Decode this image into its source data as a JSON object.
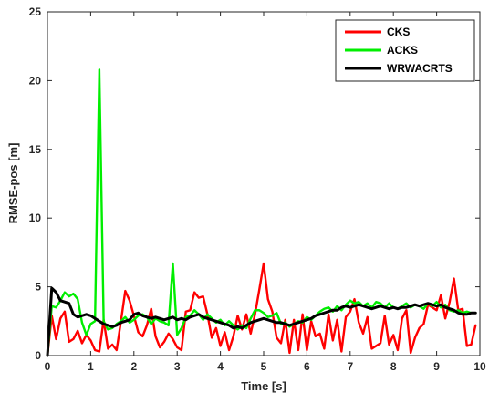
{
  "chart_data": {
    "type": "line",
    "title": "",
    "xlabel": "Time [s]",
    "ylabel": "RMSE-pos [m]",
    "xlim": [
      0,
      10
    ],
    "ylim": [
      0,
      25
    ],
    "xticks": [
      "0",
      "1",
      "2",
      "3",
      "4",
      "5",
      "6",
      "7",
      "8",
      "9",
      "10"
    ],
    "yticks": [
      "0",
      "5",
      "10",
      "15",
      "20",
      "25"
    ],
    "grid": false,
    "legend_position": "top-right",
    "series": [
      {
        "name": "CKS",
        "color": "#ff0000",
        "x": [
          0,
          0.1,
          0.2,
          0.3,
          0.4,
          0.5,
          0.6,
          0.7,
          0.8,
          0.9,
          1.0,
          1.1,
          1.2,
          1.3,
          1.4,
          1.5,
          1.6,
          1.7,
          1.8,
          1.9,
          2.0,
          2.1,
          2.2,
          2.3,
          2.4,
          2.5,
          2.6,
          2.7,
          2.8,
          2.9,
          3.0,
          3.1,
          3.2,
          3.3,
          3.4,
          3.5,
          3.6,
          3.7,
          3.8,
          3.9,
          4.0,
          4.1,
          4.2,
          4.3,
          4.4,
          4.5,
          4.6,
          4.7,
          4.8,
          4.9,
          5.0,
          5.1,
          5.2,
          5.3,
          5.4,
          5.5,
          5.6,
          5.7,
          5.8,
          5.9,
          6.0,
          6.1,
          6.2,
          6.3,
          6.4,
          6.5,
          6.6,
          6.7,
          6.8,
          6.9,
          7.0,
          7.1,
          7.2,
          7.3,
          7.4,
          7.5,
          7.6,
          7.7,
          7.8,
          7.9,
          8.0,
          8.1,
          8.2,
          8.3,
          8.4,
          8.5,
          8.6,
          8.7,
          8.8,
          8.9,
          9.0,
          9.1,
          9.2,
          9.3,
          9.4,
          9.5,
          9.6,
          9.7,
          9.8,
          9.9
        ],
        "values": [
          0,
          2.9,
          1.2,
          2.7,
          3.2,
          1.0,
          1.2,
          1.8,
          0.9,
          1.5,
          1.1,
          0.4,
          0.3,
          2.6,
          0.5,
          0.8,
          0.4,
          2.5,
          4.7,
          4.0,
          2.9,
          1.7,
          1.4,
          2.2,
          3.4,
          1.4,
          0.6,
          1.0,
          1.6,
          1.2,
          0.6,
          0.4,
          3.2,
          3.3,
          4.6,
          4.2,
          4.3,
          3.0,
          1.3,
          2.0,
          0.7,
          1.7,
          0.4,
          1.4,
          2.9,
          1.9,
          3.0,
          1.6,
          3.0,
          4.8,
          6.7,
          4.1,
          3.2,
          1.3,
          0.9,
          2.6,
          0.2,
          2.6,
          0.4,
          3.0,
          0.4,
          2.5,
          1.4,
          1.6,
          0.5,
          3.0,
          1.1,
          2.6,
          0.3,
          2.8,
          3.2,
          4.1,
          2.4,
          1.6,
          2.8,
          0.5,
          0.7,
          0.9,
          2.9,
          0.8,
          1.5,
          0.4,
          2.7,
          3.3,
          0.2,
          1.3,
          2.0,
          2.3,
          3.7,
          3.5,
          3.3,
          4.4,
          2.7,
          3.9,
          5.6,
          3.3,
          3.4,
          0.7,
          0.8,
          2.2
        ]
      },
      {
        "name": "ACKS",
        "color": "#00ee00",
        "x": [
          0,
          0.1,
          0.2,
          0.3,
          0.4,
          0.5,
          0.6,
          0.7,
          0.8,
          0.9,
          1.0,
          1.1,
          1.2,
          1.3,
          1.4,
          1.5,
          1.6,
          1.7,
          1.8,
          1.9,
          2.0,
          2.1,
          2.2,
          2.3,
          2.4,
          2.5,
          2.6,
          2.7,
          2.8,
          2.9,
          3.0,
          3.1,
          3.2,
          3.3,
          3.4,
          3.5,
          3.6,
          3.7,
          3.8,
          3.9,
          4.0,
          4.1,
          4.2,
          4.3,
          4.4,
          4.5,
          4.6,
          4.7,
          4.8,
          4.9,
          5.0,
          5.1,
          5.2,
          5.3,
          5.4,
          5.5,
          5.6,
          5.7,
          5.8,
          5.9,
          6.0,
          6.1,
          6.2,
          6.3,
          6.4,
          6.5,
          6.6,
          6.7,
          6.8,
          6.9,
          7.0,
          7.1,
          7.2,
          7.3,
          7.4,
          7.5,
          7.6,
          7.7,
          7.8,
          7.9,
          8.0,
          8.1,
          8.2,
          8.3,
          8.4,
          8.5,
          8.6,
          8.7,
          8.8,
          8.9,
          9.0,
          9.1,
          9.2,
          9.3,
          9.4,
          9.5,
          9.6,
          9.7,
          9.8,
          9.9
        ],
        "values": [
          0,
          3.6,
          3.5,
          4.0,
          4.6,
          4.3,
          4.5,
          4.1,
          2.4,
          1.5,
          2.3,
          2.5,
          20.8,
          2.5,
          1.9,
          2.0,
          2.3,
          2.5,
          2.8,
          2.4,
          2.6,
          2.9,
          3.0,
          2.8,
          2.3,
          2.7,
          2.5,
          2.4,
          2.2,
          6.7,
          1.5,
          2.0,
          2.8,
          2.9,
          3.3,
          3.0,
          2.6,
          3.0,
          2.7,
          2.4,
          2.6,
          2.2,
          2.5,
          2.2,
          1.9,
          2.2,
          2.0,
          2.7,
          3.3,
          3.3,
          3.1,
          2.8,
          2.9,
          3.1,
          2.3,
          2.4,
          2.1,
          2.3,
          2.5,
          2.4,
          2.8,
          2.6,
          2.9,
          3.2,
          3.4,
          3.5,
          3.2,
          3.6,
          3.3,
          3.7,
          4.0,
          3.8,
          3.9,
          3.6,
          3.8,
          3.5,
          3.9,
          3.8,
          3.5,
          3.8,
          3.5,
          3.4,
          3.6,
          3.8,
          3.5,
          3.7,
          3.6,
          3.4,
          3.8,
          3.6,
          3.9,
          3.5,
          3.7,
          3.3,
          3.2,
          3.3,
          3.1,
          3.2,
          3.1,
          3.1
        ]
      },
      {
        "name": "WRWACRTS",
        "color": "#000000",
        "x": [
          0,
          0.1,
          0.2,
          0.3,
          0.4,
          0.5,
          0.6,
          0.7,
          0.8,
          0.9,
          1.0,
          1.1,
          1.2,
          1.3,
          1.4,
          1.5,
          1.6,
          1.7,
          1.8,
          1.9,
          2.0,
          2.1,
          2.2,
          2.3,
          2.4,
          2.5,
          2.6,
          2.7,
          2.8,
          2.9,
          3.0,
          3.1,
          3.2,
          3.3,
          3.4,
          3.5,
          3.6,
          3.7,
          3.8,
          3.9,
          4.0,
          4.1,
          4.2,
          4.3,
          4.4,
          4.5,
          4.6,
          4.7,
          4.8,
          4.9,
          5.0,
          5.1,
          5.2,
          5.3,
          5.4,
          5.5,
          5.6,
          5.7,
          5.8,
          5.9,
          6.0,
          6.1,
          6.2,
          6.3,
          6.4,
          6.5,
          6.6,
          6.7,
          6.8,
          6.9,
          7.0,
          7.1,
          7.2,
          7.3,
          7.4,
          7.5,
          7.6,
          7.7,
          7.8,
          7.9,
          8.0,
          8.1,
          8.2,
          8.3,
          8.4,
          8.5,
          8.6,
          8.7,
          8.8,
          8.9,
          9.0,
          9.1,
          9.2,
          9.3,
          9.4,
          9.5,
          9.6,
          9.7,
          9.8,
          9.9
        ],
        "values": [
          0,
          4.9,
          4.6,
          4.0,
          3.9,
          3.8,
          3.0,
          2.8,
          2.9,
          3.0,
          2.9,
          2.7,
          2.5,
          2.3,
          2.2,
          2.1,
          2.2,
          2.4,
          2.5,
          2.6,
          3.0,
          3.1,
          2.9,
          2.8,
          2.7,
          2.8,
          2.7,
          2.6,
          2.7,
          2.8,
          2.6,
          2.7,
          2.6,
          2.8,
          2.9,
          3.0,
          2.8,
          2.7,
          2.6,
          2.5,
          2.4,
          2.3,
          2.2,
          2.0,
          2.1,
          2.0,
          2.2,
          2.4,
          2.5,
          2.6,
          2.7,
          2.6,
          2.5,
          2.4,
          2.4,
          2.3,
          2.2,
          2.3,
          2.4,
          2.5,
          2.6,
          2.7,
          2.9,
          3.0,
          3.1,
          3.2,
          3.3,
          3.3,
          3.5,
          3.6,
          3.5,
          3.6,
          3.7,
          3.6,
          3.5,
          3.4,
          3.5,
          3.6,
          3.5,
          3.4,
          3.5,
          3.4,
          3.5,
          3.5,
          3.6,
          3.7,
          3.6,
          3.7,
          3.8,
          3.7,
          3.6,
          3.7,
          3.5,
          3.4,
          3.3,
          3.1,
          3.0,
          3.0,
          3.1,
          3.1
        ]
      }
    ]
  }
}
